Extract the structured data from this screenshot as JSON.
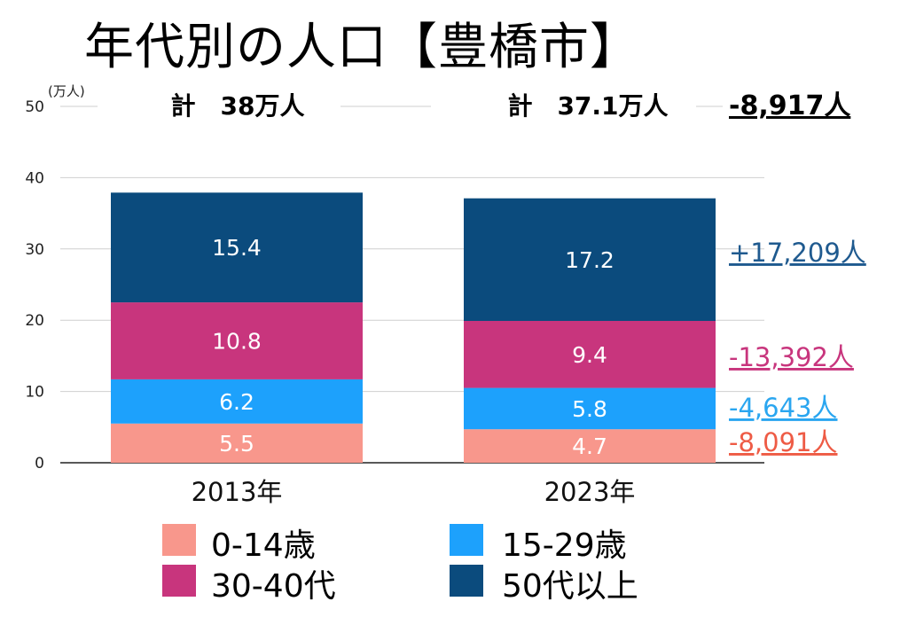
{
  "title": "年代別の人口【豊橋市】",
  "chart_data": {
    "type": "bar",
    "stacked": true,
    "unit_label": "(万人)",
    "categories": [
      "2013年",
      "2023年"
    ],
    "ylim": [
      0,
      50
    ],
    "yticks": [
      "0",
      "10",
      "20",
      "30",
      "40",
      "50"
    ],
    "ytick_values": [
      0,
      10,
      20,
      30,
      40,
      50
    ],
    "grid": true,
    "series": [
      {
        "name": "0-14歳",
        "values": [
          5.5,
          4.7
        ],
        "color": "#F8978C",
        "change": "-8,091人",
        "change_color": "#EE5B45"
      },
      {
        "name": "15-29歳",
        "values": [
          6.2,
          5.8
        ],
        "color": "#1DA1FC",
        "change": "-4,643人",
        "change_color": "#2AA6F0"
      },
      {
        "name": "30-40代",
        "values": [
          10.8,
          9.4
        ],
        "color": "#C8357D",
        "change": "-13,392人",
        "change_color": "#C8357D"
      },
      {
        "name": "50代以上",
        "values": [
          15.4,
          17.2
        ],
        "color": "#0B4B7D",
        "change": "+17,209人",
        "change_color": "#1F5A8F"
      }
    ],
    "data_labels": [
      [
        "5.5",
        "6.2",
        "10.8",
        "15.4"
      ],
      [
        "4.7",
        "5.8",
        "9.4",
        "17.2"
      ]
    ],
    "totals": [
      "計　38万人",
      "計　37.1万人"
    ],
    "total_change": "-8,917人",
    "total_change_color": "#000000"
  },
  "legend": {
    "placement": "bottom"
  }
}
